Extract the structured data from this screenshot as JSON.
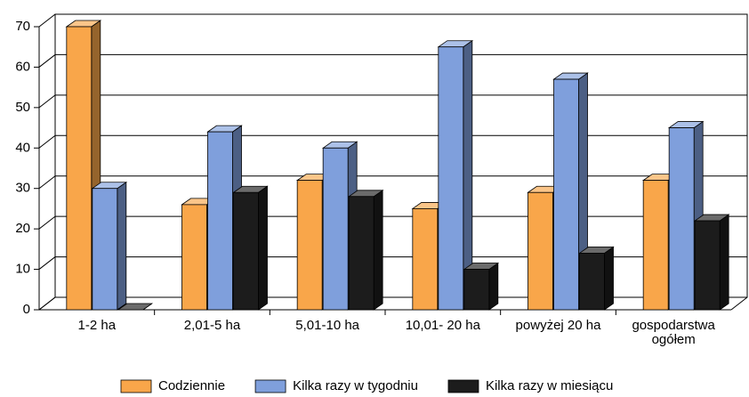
{
  "chart_data": {
    "type": "bar3d",
    "categories": [
      "1-2 ha",
      "2,01-5 ha",
      "5,01-10  ha",
      "10,01- 20 ha",
      "powyżej 20 ha",
      "gospodarstwa\nogółem"
    ],
    "series": [
      {
        "name": "Codziennie",
        "color": "#f9a64a",
        "values": [
          70,
          26,
          32,
          25,
          29,
          32
        ]
      },
      {
        "name": "Kilka razy w tygodniu",
        "color": "#7f9fdc",
        "values": [
          30,
          44,
          40,
          65,
          57,
          45
        ]
      },
      {
        "name": "Kilka razy w miesiącu",
        "color": "#1c1c1c",
        "values": [
          0,
          29,
          28,
          10,
          14,
          22
        ]
      }
    ],
    "ylim": [
      0,
      70
    ],
    "yticks": [
      0,
      10,
      20,
      30,
      40,
      50,
      60,
      70
    ],
    "grid": true,
    "legend": "bottom"
  }
}
